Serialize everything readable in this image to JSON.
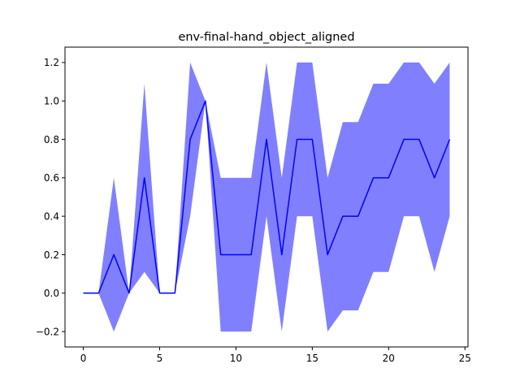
{
  "chart_data": {
    "type": "line",
    "title": "env-final-hand_object_aligned",
    "xlabel": "",
    "ylabel": "",
    "xlim": [
      -1.2,
      25.2
    ],
    "ylim": [
      -0.28,
      1.28
    ],
    "x_ticks": [
      0,
      5,
      10,
      15,
      20,
      25
    ],
    "y_ticks": [
      -0.2,
      0.0,
      0.2,
      0.4,
      0.6,
      0.8,
      1.0,
      1.2
    ],
    "x_tick_labels": [
      "0",
      "5",
      "10",
      "15",
      "20",
      "25"
    ],
    "y_tick_labels": [
      "−0.2",
      "0.0",
      "0.2",
      "0.4",
      "0.6",
      "0.8",
      "1.0",
      "1.2"
    ],
    "grid": false,
    "legend": "none",
    "x": [
      0,
      1,
      2,
      3,
      4,
      5,
      6,
      7,
      8,
      9,
      10,
      11,
      12,
      13,
      14,
      15,
      16,
      17,
      18,
      19,
      20,
      21,
      22,
      23,
      24
    ],
    "series": [
      {
        "values": [
          0,
          0,
          0.2,
          0,
          0.6,
          0,
          0,
          0.8,
          1.0,
          0.2,
          0.2,
          0.2,
          0.8,
          0.2,
          0.8,
          0.8,
          0.2,
          0.4,
          0.4,
          0.6,
          0.6,
          0.8,
          0.8,
          0.6,
          0.8
        ],
        "band_lower": [
          0,
          0,
          -0.2,
          0,
          0.11,
          0,
          0,
          0.4,
          1.0,
          -0.2,
          -0.2,
          -0.2,
          0.4,
          -0.2,
          0.4,
          0.4,
          -0.2,
          -0.09,
          -0.09,
          0.11,
          0.11,
          0.4,
          0.4,
          0.11,
          0.4
        ],
        "band_upper": [
          0,
          0,
          0.6,
          0,
          1.09,
          0,
          0,
          1.2,
          1.0,
          0.6,
          0.6,
          0.6,
          1.2,
          0.6,
          1.2,
          1.2,
          0.6,
          0.89,
          0.89,
          1.09,
          1.09,
          1.2,
          1.2,
          1.09,
          1.2
        ],
        "line_color": "#0000ff",
        "band_color": "#8080ff"
      }
    ]
  }
}
